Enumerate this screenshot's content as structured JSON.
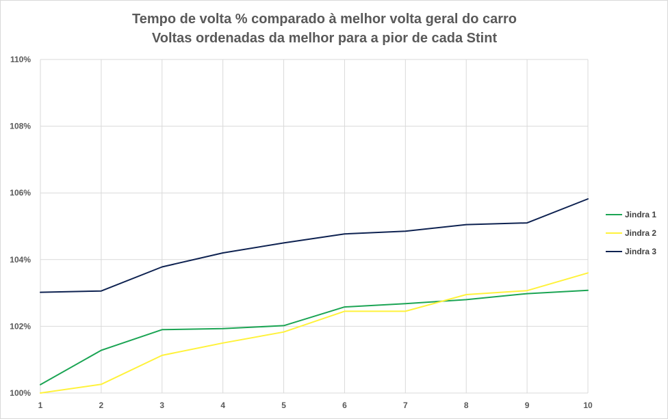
{
  "chart_data": {
    "type": "line",
    "title": "Tempo de volta % comparado à melhor volta geral do carro",
    "subtitle": "Voltas ordenadas da melhor para a pior de cada Stint",
    "x": [
      1,
      2,
      3,
      4,
      5,
      6,
      7,
      8,
      9,
      10
    ],
    "xlabel": "",
    "ylabel": "",
    "ylim": [
      100,
      110
    ],
    "yticks": [
      100,
      102,
      104,
      106,
      108,
      110
    ],
    "ytick_labels": [
      "100%",
      "102%",
      "104%",
      "106%",
      "108%",
      "110%"
    ],
    "grid": true,
    "legend_position": "right",
    "series": [
      {
        "name": "Jindra 1",
        "color": "#1aa453",
        "values": [
          100.25,
          101.28,
          101.9,
          101.93,
          102.02,
          102.58,
          102.68,
          102.8,
          102.98,
          103.08
        ]
      },
      {
        "name": "Jindra 2",
        "color": "#fff23a",
        "values": [
          100.0,
          100.26,
          101.13,
          101.5,
          101.83,
          102.45,
          102.45,
          102.95,
          103.07,
          103.6
        ]
      },
      {
        "name": "Jindra 3",
        "color": "#0d2150",
        "values": [
          103.02,
          103.06,
          103.78,
          104.2,
          104.5,
          104.77,
          104.85,
          105.05,
          105.1,
          105.82
        ]
      }
    ]
  }
}
